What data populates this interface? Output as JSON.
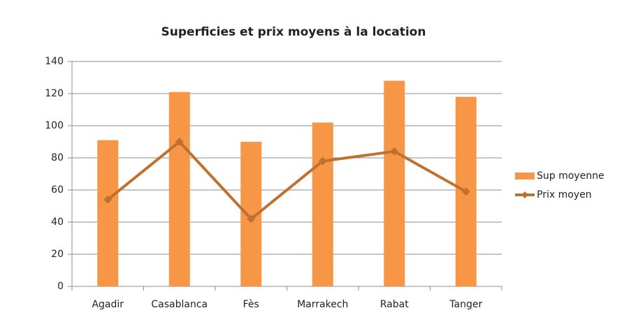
{
  "chart_data": {
    "type": "bar-line",
    "title": "Superficies et prix moyens à la location",
    "categories": [
      "Agadir",
      "Casablanca",
      "Fès",
      "Marrakech",
      "Rabat",
      "Tanger"
    ],
    "series": [
      {
        "name": "Sup moyenne",
        "type": "bar",
        "color": "#f79646",
        "values": [
          91,
          121,
          90,
          102,
          128,
          118
        ]
      },
      {
        "name": "Prix moyen",
        "type": "line",
        "color": "#c0712f",
        "values": [
          54,
          90,
          42,
          78,
          84,
          59
        ]
      }
    ],
    "ylim": [
      0,
      140
    ],
    "yticks": [
      0,
      20,
      40,
      60,
      80,
      100,
      120,
      140
    ],
    "grid": true,
    "legend": "right"
  }
}
